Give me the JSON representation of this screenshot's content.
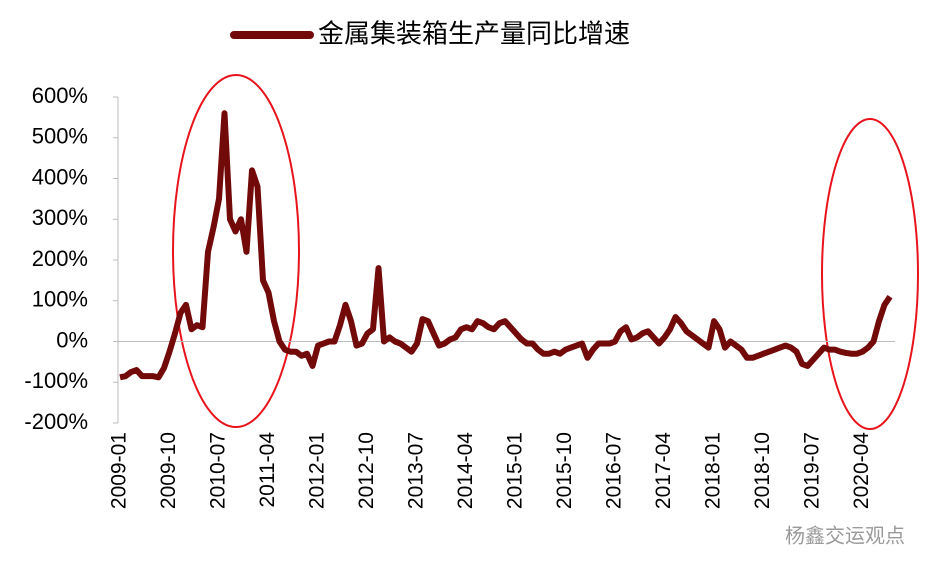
{
  "chart_data": {
    "type": "line",
    "categories": [
      "2009-01",
      null,
      null,
      null,
      null,
      null,
      null,
      null,
      null,
      "2009-10",
      null,
      null,
      null,
      null,
      null,
      null,
      null,
      null,
      "2010-07",
      null,
      null,
      null,
      null,
      null,
      null,
      null,
      null,
      "2011-04",
      null,
      null,
      null,
      null,
      null,
      null,
      null,
      null,
      "2012-01",
      null,
      null,
      null,
      null,
      null,
      null,
      null,
      null,
      "2012-10",
      null,
      null,
      null,
      null,
      null,
      null,
      null,
      null,
      "2013-07",
      null,
      null,
      null,
      null,
      null,
      null,
      null,
      null,
      "2014-04",
      null,
      null,
      null,
      null,
      null,
      null,
      null,
      null,
      "2015-01",
      null,
      null,
      null,
      null,
      null,
      null,
      null,
      null,
      "2015-10",
      null,
      null,
      null,
      null,
      null,
      null,
      null,
      null,
      "2016-07",
      null,
      null,
      null,
      null,
      null,
      null,
      null,
      null,
      "2017-04",
      null,
      null,
      null,
      null,
      null,
      null,
      null,
      null,
      "2018-01",
      null,
      null,
      null,
      null,
      null,
      null,
      null,
      null,
      "2018-10",
      null,
      null,
      null,
      null,
      null,
      null,
      null,
      null,
      "2019-07",
      null,
      null,
      null,
      null,
      null,
      null,
      null,
      null,
      "2020-04",
      null,
      null,
      null,
      null,
      null
    ],
    "series": [
      {
        "name": "金属集装箱生产量同比增速",
        "color": "#720a0a",
        "values": [
          -88,
          -85,
          -75,
          -70,
          -85,
          -85,
          -85,
          -88,
          -65,
          -25,
          20,
          70,
          90,
          30,
          40,
          35,
          220,
          280,
          350,
          560,
          300,
          270,
          300,
          220,
          420,
          380,
          150,
          120,
          50,
          0,
          -20,
          -25,
          -25,
          -35,
          -30,
          -60,
          -10,
          -5,
          0,
          0,
          40,
          90,
          50,
          -10,
          -5,
          20,
          30,
          180,
          0,
          10,
          0,
          -5,
          -15,
          -25,
          -5,
          55,
          50,
          20,
          -10,
          -5,
          5,
          10,
          30,
          35,
          30,
          50,
          45,
          35,
          30,
          45,
          50,
          35,
          20,
          5,
          -5,
          -5,
          -20,
          -30,
          -30,
          -25,
          -30,
          -20,
          -15,
          -10,
          -5,
          -40,
          -20,
          -5,
          -5,
          -5,
          0,
          25,
          35,
          5,
          10,
          20,
          25,
          10,
          -5,
          10,
          30,
          60,
          45,
          25,
          15,
          5,
          -5,
          -15,
          50,
          30,
          -15,
          0,
          -10,
          -20,
          -40,
          -40,
          -35,
          -30,
          -25,
          -20,
          -15,
          -10,
          -15,
          -25,
          -55,
          -60,
          -45,
          -30,
          -15,
          -20,
          -20,
          -25,
          -28,
          -30,
          -30,
          -25,
          -15,
          0,
          50,
          90,
          110
        ]
      }
    ],
    "ylim": [
      -200,
      600
    ],
    "yticks": [
      {
        "value": -200,
        "label": "-200%"
      },
      {
        "value": -100,
        "label": "-100%"
      },
      {
        "value": 0,
        "label": "0%"
      },
      {
        "value": 100,
        "label": "100%"
      },
      {
        "value": 200,
        "label": "200%"
      },
      {
        "value": 300,
        "label": "300%"
      },
      {
        "value": 400,
        "label": "400%"
      },
      {
        "value": 500,
        "label": "500%"
      },
      {
        "value": 600,
        "label": "600%"
      }
    ],
    "legend": "top",
    "watermark": "杨鑫交运观点"
  }
}
